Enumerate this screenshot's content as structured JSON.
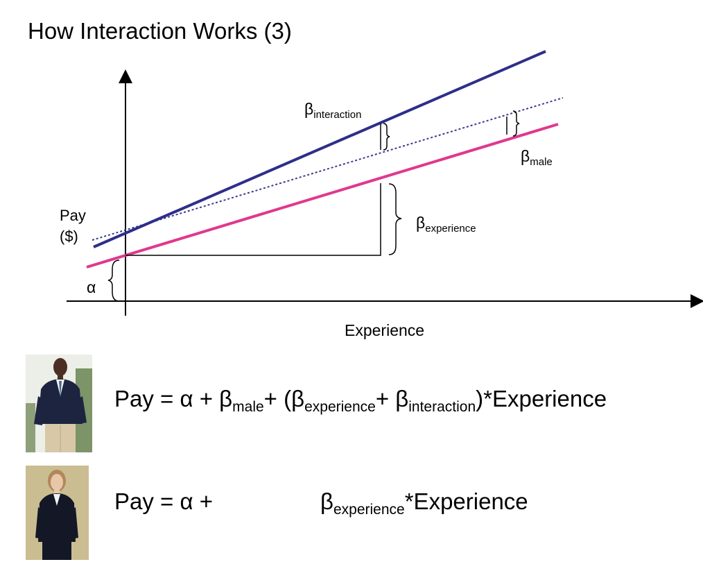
{
  "title": "How Interaction Works (3)",
  "axes": {
    "y_label_line1": "Pay",
    "y_label_line2": "($)",
    "x_label": "Experience"
  },
  "labels": {
    "interaction": {
      "symbol": "β",
      "sub": "interaction"
    },
    "male": {
      "symbol": "β",
      "sub": "male"
    },
    "experience": {
      "symbol": "β",
      "sub": "experience"
    },
    "alpha": "α"
  },
  "colors": {
    "male_line": "#2e2e8a",
    "female_line": "#e0388e",
    "dotted_line": "#3a3a8c",
    "axis": "#000000"
  },
  "equations": {
    "man": {
      "p1": "Pay = α + β",
      "s1": "male",
      "p2": "+ (β",
      "s2": "experience",
      "p3": "+ β",
      "s3": "interaction",
      "p4": ")*Experience"
    },
    "woman": {
      "p1": "Pay = α +",
      "p2": "β",
      "s2": "experience",
      "p3": "*Experience"
    }
  },
  "images": {
    "man": "man-in-suit-photo",
    "woman": "woman-in-suit-photo"
  }
}
